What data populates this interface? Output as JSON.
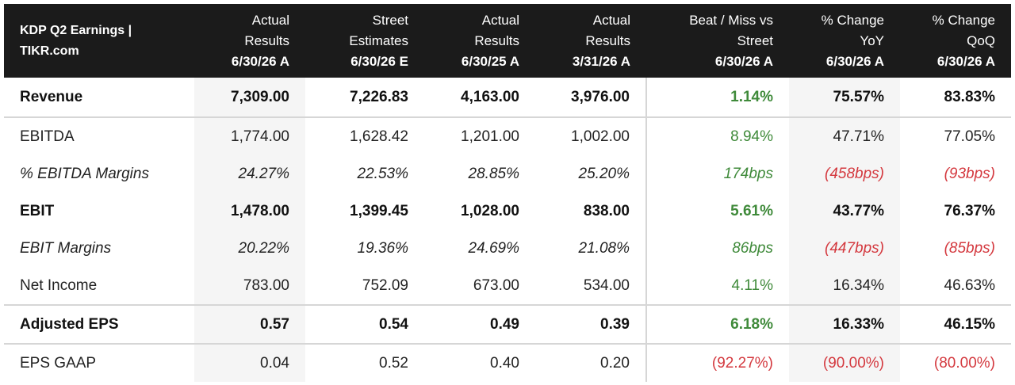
{
  "table": {
    "headers": [
      {
        "lines": [
          "KDP Q2 Earnings |",
          "TIKR.com"
        ]
      },
      {
        "lines": [
          "Actual",
          "Results"
        ],
        "date": "6/30/26 A"
      },
      {
        "lines": [
          "Street",
          "Estimates"
        ],
        "date": "6/30/26 E"
      },
      {
        "lines": [
          "Actual",
          "Results"
        ],
        "date": "6/30/25 A"
      },
      {
        "lines": [
          "Actual",
          "Results"
        ],
        "date": "3/31/26 A"
      },
      {
        "lines": [
          "Beat / Miss vs",
          "Street"
        ],
        "date": "6/30/26 A"
      },
      {
        "lines": [
          "% Change",
          "YoY"
        ],
        "date": "6/30/26 A"
      },
      {
        "lines": [
          "% Change",
          "QoQ"
        ],
        "date": "6/30/26 A"
      }
    ],
    "rows": [
      {
        "label": "Revenue",
        "values": [
          "7,309.00",
          "7,226.83",
          "4,163.00",
          "3,976.00",
          "1.14%",
          "75.57%",
          "83.83%"
        ]
      },
      {
        "label": "EBITDA",
        "values": [
          "1,774.00",
          "1,628.42",
          "1,201.00",
          "1,002.00",
          "8.94%",
          "47.71%",
          "77.05%"
        ]
      },
      {
        "label": "% EBITDA Margins",
        "values": [
          "24.27%",
          "22.53%",
          "28.85%",
          "25.20%",
          "174bps",
          "(458bps)",
          "(93bps)"
        ]
      },
      {
        "label": "EBIT",
        "values": [
          "1,478.00",
          "1,399.45",
          "1,028.00",
          "838.00",
          "5.61%",
          "43.77%",
          "76.37%"
        ]
      },
      {
        "label": "EBIT Margins",
        "values": [
          "20.22%",
          "19.36%",
          "24.69%",
          "21.08%",
          "86bps",
          "(447bps)",
          "(85bps)"
        ]
      },
      {
        "label": "Net Income",
        "values": [
          "783.00",
          "752.09",
          "673.00",
          "534.00",
          "4.11%",
          "16.34%",
          "46.63%"
        ]
      },
      {
        "label": "Adjusted EPS",
        "values": [
          "0.57",
          "0.54",
          "0.49",
          "0.39",
          "6.18%",
          "16.33%",
          "46.15%"
        ]
      },
      {
        "label": "EPS GAAP",
        "values": [
          "0.04",
          "0.52",
          "0.40",
          "0.20",
          "(92.27%)",
          "(90.00%)",
          "(80.00%)"
        ]
      }
    ]
  },
  "colors": {
    "header_bg": "#1b1b1b",
    "positive": "#3f8a3a",
    "negative": "#d4393f",
    "shade": "#f5f5f5",
    "rule": "#d6d6d6"
  }
}
